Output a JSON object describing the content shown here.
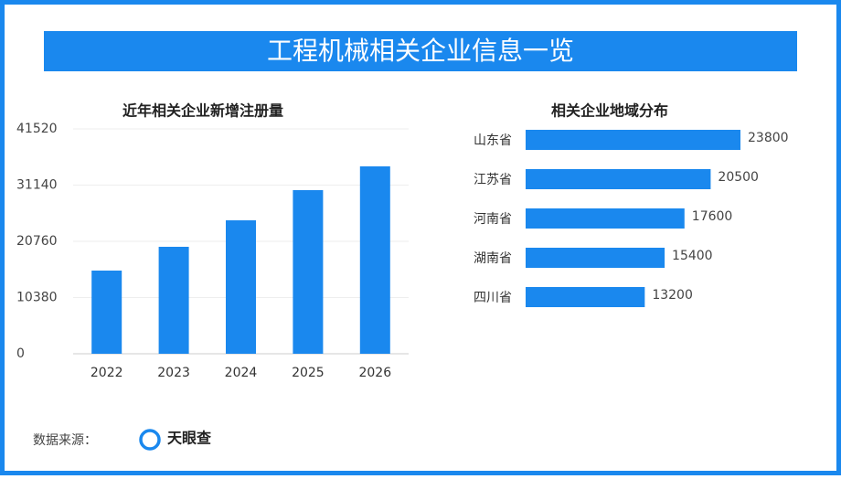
{
  "page_title": "工程机械相关企业信息一览",
  "chart_data": [
    {
      "type": "bar",
      "title": "近年相关企业新增注册量",
      "categories": [
        "2022",
        "2023",
        "2024",
        "2025",
        "2026"
      ],
      "values": [
        15360,
        19750,
        24640,
        30210,
        34600
      ],
      "color": "#1a88ee",
      "ylim": [
        0,
        41520
      ],
      "yticks": [
        0,
        10380,
        20760,
        31140,
        41520
      ],
      "grid": true
    },
    {
      "type": "hbar",
      "title": "相关企业地域分布",
      "categories": [
        "山东省",
        "江苏省",
        "河南省",
        "湖南省",
        "四川省"
      ],
      "values": [
        23800,
        20500,
        17600,
        15400,
        13200
      ],
      "color": "#1a88ee"
    }
  ],
  "footer": {
    "source_label": "数据来源：",
    "source_name": "天眼查"
  }
}
